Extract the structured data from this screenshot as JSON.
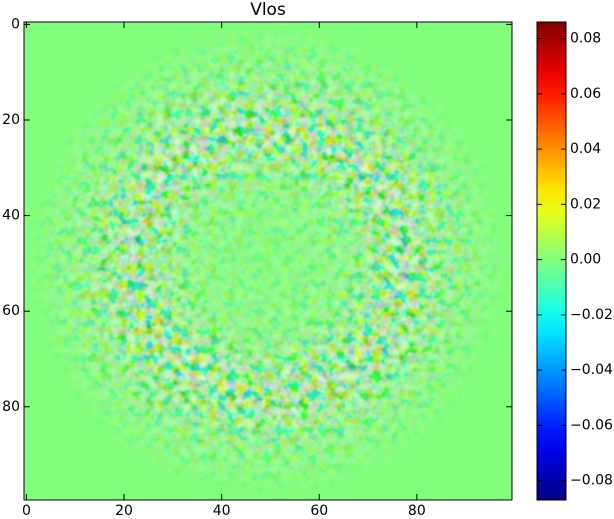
{
  "chart_data": {
    "type": "heatmap",
    "title": "Vlos",
    "colormap": "jet",
    "xlim": [
      -0.5,
      99.5
    ],
    "ylim": [
      99.5,
      -0.5
    ],
    "xticks": [
      0,
      20,
      40,
      60,
      80
    ],
    "yticks": [
      0,
      20,
      40,
      60,
      80
    ],
    "clim": [
      -0.087,
      0.086
    ],
    "cticks": [
      {
        "value": -0.08,
        "label": "−0.08"
      },
      {
        "value": -0.06,
        "label": "−0.06"
      },
      {
        "value": -0.04,
        "label": "−0.04"
      },
      {
        "value": -0.02,
        "label": "−0.02"
      },
      {
        "value": 0,
        "label": "0.00"
      },
      {
        "value": 0.02,
        "label": "0.02"
      },
      {
        "value": 0.04,
        "label": "0.04"
      },
      {
        "value": 0.06,
        "label": "0.06"
      },
      {
        "value": 0.08,
        "label": "0.08"
      }
    ]
  }
}
